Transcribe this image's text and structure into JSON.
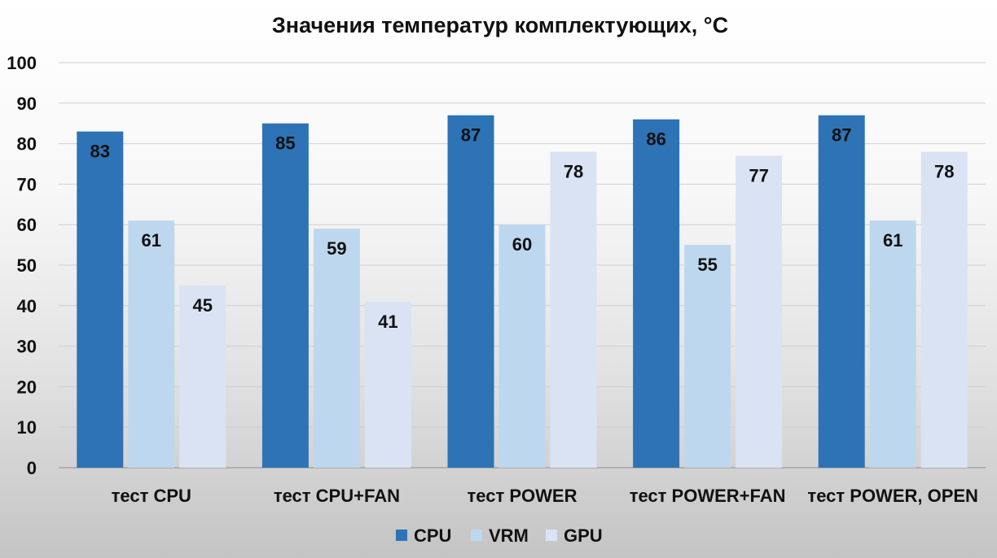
{
  "chart_data": {
    "type": "bar",
    "title": "Значения температур комплектующих, °C",
    "xlabel": "",
    "ylabel": "",
    "ylim": [
      0,
      100
    ],
    "yticks": [
      0,
      10,
      20,
      30,
      40,
      50,
      60,
      70,
      80,
      90,
      100
    ],
    "grid": true,
    "legend_position": "bottom",
    "categories": [
      "тест CPU",
      "тест CPU+FAN",
      "тест POWER",
      "тест POWER+FAN",
      "тест POWER, OPEN"
    ],
    "series": [
      {
        "name": "CPU",
        "color": "#2e73b6",
        "values": [
          83,
          85,
          87,
          86,
          87
        ]
      },
      {
        "name": "VRM",
        "color": "#bdd7ee",
        "values": [
          61,
          59,
          60,
          55,
          61
        ]
      },
      {
        "name": "GPU",
        "color": "#dae3f3",
        "values": [
          45,
          41,
          78,
          77,
          78
        ]
      }
    ]
  }
}
